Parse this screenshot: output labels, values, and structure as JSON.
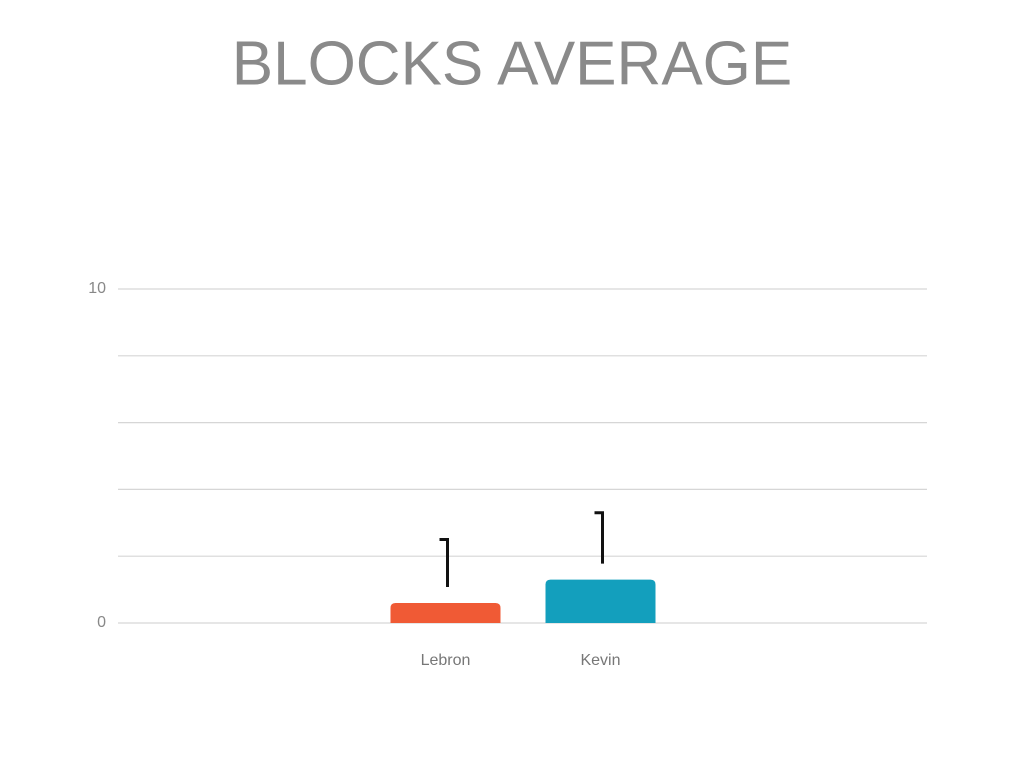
{
  "chart_data": {
    "type": "bar",
    "title": "BLOCKS AVERAGE",
    "categories": [
      "Lebron",
      "Kevin"
    ],
    "values": [
      0.6,
      1.3
    ],
    "errors": [
      1.9,
      2.0
    ],
    "colors": [
      "#f05a35",
      "#139fbd"
    ],
    "ylim": [
      0,
      10
    ],
    "yticks": [
      0,
      {
        "value": 2,
        "label": null
      },
      {
        "value": 4,
        "label": null
      },
      {
        "value": 6,
        "label": null
      },
      {
        "value": 8,
        "label": null
      },
      10
    ],
    "grid": true
  }
}
